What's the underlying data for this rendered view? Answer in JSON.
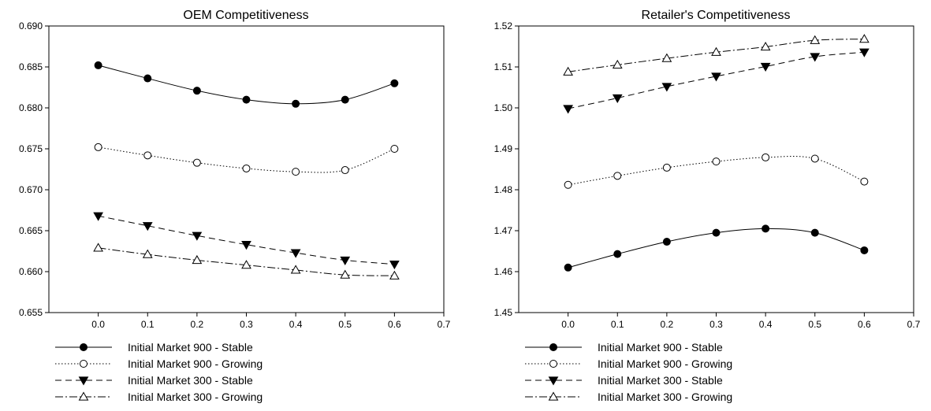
{
  "chart_data": [
    {
      "type": "line",
      "title": "OEM Competitiveness",
      "xlabel": "",
      "ylabel": "",
      "x": [
        0.0,
        0.1,
        0.2,
        0.3,
        0.4,
        0.5,
        0.6
      ],
      "xlim": [
        -0.1,
        0.7
      ],
      "ylim": [
        0.655,
        0.69
      ],
      "xticks": [
        "0.0",
        "0.1",
        "0.2",
        "0.3",
        "0.4",
        "0.5",
        "0.6",
        "0.7"
      ],
      "yticks": [
        "0.655",
        "0.660",
        "0.665",
        "0.670",
        "0.675",
        "0.680",
        "0.685",
        "0.690"
      ],
      "grid": false,
      "legend_position": "bottom-left",
      "series": [
        {
          "name": "Initial Market 900 - Stable",
          "values": [
            0.6852,
            0.6836,
            0.6821,
            0.681,
            0.6805,
            0.681,
            0.683
          ],
          "marker": "filled-circle",
          "line": "solid"
        },
        {
          "name": "Initial Market 900 - Growing",
          "values": [
            0.6752,
            0.6742,
            0.6733,
            0.6726,
            0.6722,
            0.6724,
            0.675
          ],
          "marker": "open-circle",
          "line": "dotted"
        },
        {
          "name": "Initial Market 300 - Stable",
          "values": [
            0.6668,
            0.6656,
            0.6644,
            0.6633,
            0.6623,
            0.6614,
            0.6609
          ],
          "marker": "filled-triangle-down",
          "line": "dashed"
        },
        {
          "name": "Initial Market 300 - Growing",
          "values": [
            0.6629,
            0.6621,
            0.6614,
            0.6608,
            0.6602,
            0.6596,
            0.6595
          ],
          "marker": "open-triangle-up",
          "line": "dash-dot"
        }
      ]
    },
    {
      "type": "line",
      "title": "Retailer's Competitiveness",
      "xlabel": "",
      "ylabel": "",
      "x": [
        0.0,
        0.1,
        0.2,
        0.3,
        0.4,
        0.5,
        0.6
      ],
      "xlim": [
        -0.1,
        0.7
      ],
      "ylim": [
        1.45,
        1.52
      ],
      "xticks": [
        "0.0",
        "0.1",
        "0.2",
        "0.3",
        "0.4",
        "0.5",
        "0.6",
        "0.7"
      ],
      "yticks": [
        "1.45",
        "1.46",
        "1.47",
        "1.48",
        "1.49",
        "1.50",
        "1.51",
        "1.52"
      ],
      "grid": false,
      "legend_position": "bottom-left",
      "series": [
        {
          "name": "Initial Market 900 - Stable",
          "values": [
            1.461,
            1.4643,
            1.4673,
            1.4695,
            1.4705,
            1.4695,
            1.4652
          ],
          "marker": "filled-circle",
          "line": "solid"
        },
        {
          "name": "Initial Market 900 - Growing",
          "values": [
            1.4812,
            1.4834,
            1.4854,
            1.4869,
            1.4879,
            1.4876,
            1.482
          ],
          "marker": "open-circle",
          "line": "dotted"
        },
        {
          "name": "Initial Market 300 - Stable",
          "values": [
            1.4998,
            1.5024,
            1.5052,
            1.5077,
            1.5101,
            1.5125,
            1.5136
          ],
          "marker": "filled-triangle-down",
          "line": "dashed"
        },
        {
          "name": "Initial Market 300 - Growing",
          "values": [
            1.5088,
            1.5105,
            1.5121,
            1.5136,
            1.5149,
            1.5165,
            1.5168
          ],
          "marker": "open-triangle-up",
          "line": "dash-dot"
        }
      ]
    }
  ]
}
